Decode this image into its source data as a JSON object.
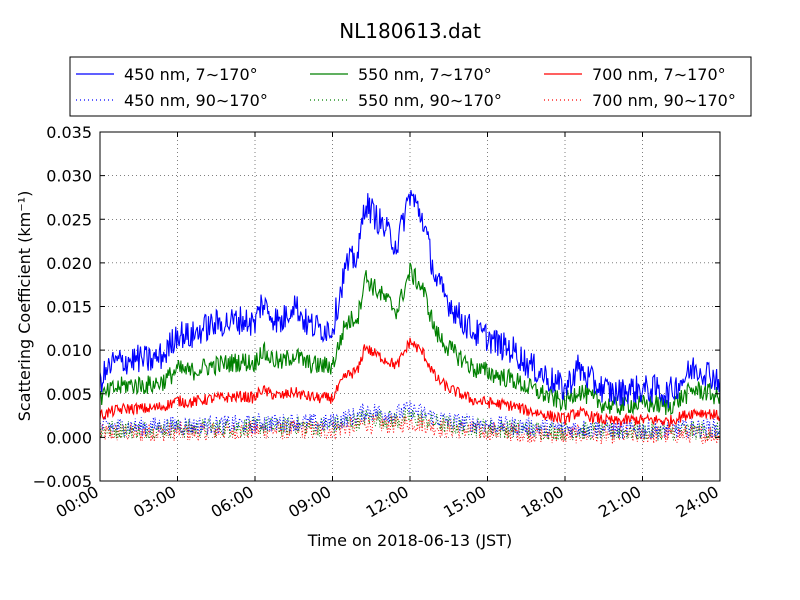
{
  "chart_data": {
    "type": "line",
    "title": "NL180613.dat",
    "xlabel": "Time on 2018-06-13 (JST)",
    "ylabel": "Scattering Coefficient (km⁻¹)",
    "xlim_hours": [
      0,
      24
    ],
    "ylim": [
      -0.005,
      0.035
    ],
    "x_ticks": [
      0,
      3,
      6,
      9,
      12,
      15,
      18,
      21,
      24
    ],
    "x_tick_labels": [
      "00:00",
      "03:00",
      "06:00",
      "09:00",
      "12:00",
      "15:00",
      "18:00",
      "21:00",
      "24:00"
    ],
    "y_ticks": [
      -0.005,
      0.0,
      0.005,
      0.01,
      0.015,
      0.02,
      0.025,
      0.03,
      0.035
    ],
    "y_tick_labels": [
      "−0.005",
      "0.000",
      "0.005",
      "0.010",
      "0.015",
      "0.020",
      "0.025",
      "0.030",
      "0.035"
    ],
    "grid": true,
    "legend_placement": "top, above plot, 3 columns",
    "x_hours": [
      0,
      0.5,
      1,
      1.5,
      2,
      2.5,
      3,
      3.5,
      4,
      4.5,
      5,
      5.5,
      6,
      6.25,
      6.5,
      7,
      7.5,
      8,
      8.5,
      9,
      9.5,
      10,
      10.25,
      10.5,
      11,
      11.5,
      12,
      12.5,
      13,
      13.5,
      14,
      14.5,
      15,
      15.5,
      16,
      16.5,
      17,
      17.5,
      18,
      18.5,
      19,
      19.5,
      20,
      20.5,
      21,
      21.5,
      22,
      22.5,
      23,
      23.5,
      24
    ],
    "series": [
      {
        "name": "450 nm, 7∼170°",
        "color": "#0000ff",
        "style": "solid",
        "values": [
          0.0065,
          0.0085,
          0.0088,
          0.009,
          0.0088,
          0.0095,
          0.012,
          0.0115,
          0.0125,
          0.013,
          0.0132,
          0.0135,
          0.013,
          0.0155,
          0.0145,
          0.013,
          0.0155,
          0.013,
          0.0125,
          0.0125,
          0.0195,
          0.021,
          0.027,
          0.026,
          0.024,
          0.022,
          0.028,
          0.025,
          0.018,
          0.0155,
          0.0135,
          0.012,
          0.0115,
          0.0105,
          0.01,
          0.0085,
          0.0075,
          0.0065,
          0.0055,
          0.008,
          0.0065,
          0.0055,
          0.005,
          0.0055,
          0.0055,
          0.0055,
          0.005,
          0.0065,
          0.008,
          0.0075,
          0.0065
        ]
      },
      {
        "name": "450 nm, 90∼170°",
        "color": "#0000ff",
        "style": "dotted",
        "values": [
          0.0012,
          0.0012,
          0.0013,
          0.0012,
          0.0013,
          0.0013,
          0.0014,
          0.0013,
          0.0014,
          0.0014,
          0.0015,
          0.0015,
          0.0015,
          0.0018,
          0.0017,
          0.0016,
          0.0018,
          0.0017,
          0.0016,
          0.0017,
          0.0022,
          0.0025,
          0.003,
          0.003,
          0.0028,
          0.0027,
          0.0032,
          0.0028,
          0.0022,
          0.0019,
          0.0017,
          0.0016,
          0.0015,
          0.0014,
          0.0013,
          0.0012,
          0.0011,
          0.0011,
          0.001,
          0.0011,
          0.001,
          0.001,
          0.0009,
          0.0009,
          0.0009,
          0.0009,
          0.0009,
          0.001,
          0.0011,
          0.0011,
          0.001
        ]
      },
      {
        "name": "550 nm, 7∼170°",
        "color": "#008000",
        "style": "solid",
        "values": [
          0.0045,
          0.0055,
          0.006,
          0.006,
          0.006,
          0.0065,
          0.0078,
          0.0075,
          0.008,
          0.0083,
          0.0085,
          0.0087,
          0.0085,
          0.01,
          0.0093,
          0.0085,
          0.0095,
          0.0085,
          0.0082,
          0.0082,
          0.013,
          0.014,
          0.0185,
          0.0175,
          0.016,
          0.0145,
          0.019,
          0.017,
          0.012,
          0.0102,
          0.009,
          0.0078,
          0.0075,
          0.007,
          0.0066,
          0.0058,
          0.0052,
          0.0045,
          0.004,
          0.0055,
          0.0045,
          0.0038,
          0.0035,
          0.0038,
          0.0038,
          0.0038,
          0.0035,
          0.0045,
          0.0055,
          0.0052,
          0.0045
        ]
      },
      {
        "name": "550 nm, 90∼170°",
        "color": "#008000",
        "style": "dotted",
        "values": [
          0.0009,
          0.0009,
          0.001,
          0.0009,
          0.001,
          0.001,
          0.0011,
          0.001,
          0.0011,
          0.0011,
          0.0012,
          0.0012,
          0.0012,
          0.0014,
          0.0013,
          0.0012,
          0.0014,
          0.0013,
          0.0012,
          0.0013,
          0.0017,
          0.0019,
          0.0023,
          0.0023,
          0.0021,
          0.002,
          0.0024,
          0.0021,
          0.0017,
          0.0014,
          0.0013,
          0.0012,
          0.0011,
          0.001,
          0.001,
          0.0009,
          0.0008,
          0.0008,
          0.0007,
          0.0008,
          0.0007,
          0.0007,
          0.0007,
          0.0007,
          0.0007,
          0.0007,
          0.0007,
          0.0008,
          0.0008,
          0.0008,
          0.0007
        ]
      },
      {
        "name": "700 nm, 7∼170°",
        "color": "#ff0000",
        "style": "solid",
        "values": [
          0.0025,
          0.003,
          0.0033,
          0.0033,
          0.0033,
          0.0036,
          0.0042,
          0.004,
          0.0043,
          0.0045,
          0.0046,
          0.0047,
          0.0045,
          0.0055,
          0.0051,
          0.0047,
          0.0052,
          0.0047,
          0.0045,
          0.0045,
          0.007,
          0.0077,
          0.0105,
          0.0098,
          0.009,
          0.0082,
          0.011,
          0.0097,
          0.0068,
          0.0056,
          0.0049,
          0.0042,
          0.004,
          0.0038,
          0.0036,
          0.0031,
          0.0028,
          0.0024,
          0.0021,
          0.0029,
          0.0024,
          0.002,
          0.0018,
          0.002,
          0.002,
          0.002,
          0.0018,
          0.0024,
          0.0029,
          0.0028,
          0.0024
        ]
      },
      {
        "name": "700 nm, 90∼170°",
        "color": "#ff0000",
        "style": "dotted",
        "values": [
          0.0005,
          0.0005,
          0.0006,
          0.0005,
          0.0006,
          0.0006,
          0.0007,
          0.0006,
          0.0007,
          0.0007,
          0.0008,
          0.0008,
          0.0008,
          0.0009,
          0.0009,
          0.0008,
          0.0009,
          0.0009,
          0.0008,
          0.0009,
          0.0012,
          0.0013,
          0.0017,
          0.0016,
          0.0015,
          0.0014,
          0.0018,
          0.0016,
          0.0012,
          0.001,
          0.0009,
          0.0008,
          0.0007,
          0.0007,
          0.0006,
          0.0005,
          0.0004,
          0.0004,
          0.0003,
          0.0004,
          0.0003,
          0.0003,
          0.0003,
          0.0003,
          0.0003,
          0.0003,
          0.0003,
          0.0004,
          0.0004,
          0.0004,
          0.0003
        ]
      }
    ]
  }
}
